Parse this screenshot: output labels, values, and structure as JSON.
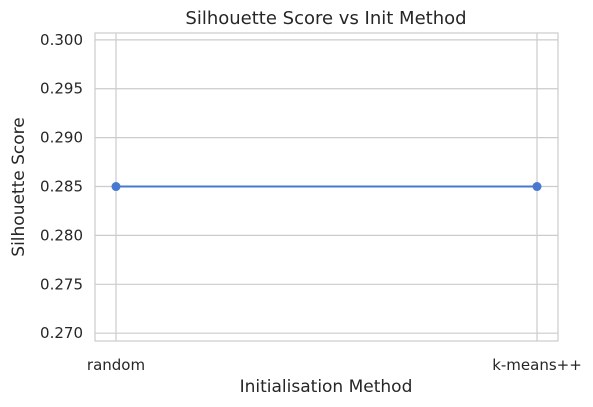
{
  "chart_data": {
    "type": "line",
    "title": "Silhouette Score vs Init Method",
    "xlabel": "Initialisation Method",
    "ylabel": "Silhouette Score",
    "categories": [
      "random",
      "k-means++"
    ],
    "series": [
      {
        "values": [
          0.285,
          0.285
        ],
        "color": "#4878d0",
        "marker": "circle"
      }
    ],
    "ylim": [
      0.2692,
      0.3007
    ],
    "yticks": [
      0.27,
      0.275,
      0.28,
      0.285,
      0.29,
      0.295,
      0.3
    ],
    "ytick_labels": [
      "0.270",
      "0.275",
      "0.280",
      "0.285",
      "0.290",
      "0.295",
      "0.300"
    ],
    "grid": true,
    "legend": "none"
  }
}
